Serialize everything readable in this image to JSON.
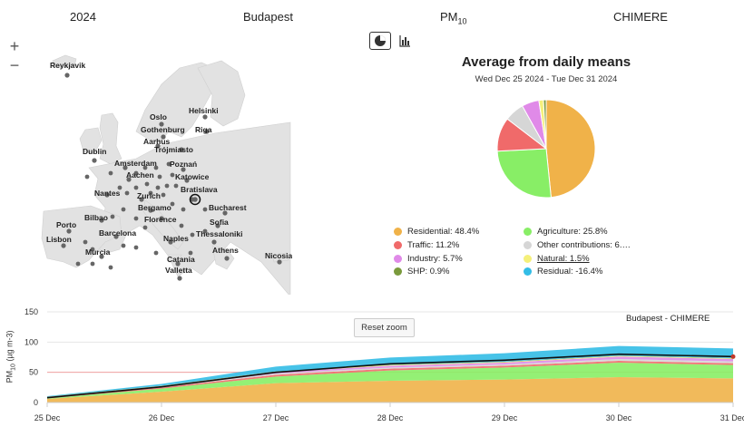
{
  "header": {
    "year": "2024",
    "city": "Budapest",
    "pollutant_main": "PM",
    "pollutant_sub": "10",
    "model": "CHIMERE"
  },
  "map": {
    "zoom_in": "+",
    "zoom_out": "−",
    "cities": [
      {
        "name": "Reykjavik"
      },
      {
        "name": "Helsinki"
      },
      {
        "name": "Oslo"
      },
      {
        "name": "Gothenburg"
      },
      {
        "name": "Riga"
      },
      {
        "name": "Aarhus"
      },
      {
        "name": "Trójmiasto"
      },
      {
        "name": "Dublin"
      },
      {
        "name": "Amsterdam"
      },
      {
        "name": "Poznań"
      },
      {
        "name": "Aachen"
      },
      {
        "name": "Katowice"
      },
      {
        "name": "Nantes"
      },
      {
        "name": "Zurich"
      },
      {
        "name": "Bratislava"
      },
      {
        "name": "Bergamo"
      },
      {
        "name": "Bilbao"
      },
      {
        "name": "Florence"
      },
      {
        "name": "Bucharest"
      },
      {
        "name": "Porto"
      },
      {
        "name": "Sofia"
      },
      {
        "name": "Barcelona"
      },
      {
        "name": "Lisbon"
      },
      {
        "name": "Naples"
      },
      {
        "name": "Thessaloniki"
      },
      {
        "name": "Murcia"
      },
      {
        "name": "Athens"
      },
      {
        "name": "Nicosia"
      },
      {
        "name": "Catania"
      },
      {
        "name": "Valletta"
      }
    ]
  },
  "toggles": {
    "pie": "pie-chart-icon",
    "bar": "bar-chart-icon"
  },
  "pie": {
    "title": "Average from daily means",
    "subtitle": "Wed Dec 25 2024 - Tue Dec 31 2024",
    "legend": [
      {
        "label": "Residential: 48.4%",
        "color": "#f0b249"
      },
      {
        "label": "Agriculture: 25.8%",
        "color": "#88ee66"
      },
      {
        "label": "Traffic: 11.2%",
        "color": "#f06a6a"
      },
      {
        "label": "Other contributions: 6.…",
        "color": "#d6d6d6"
      },
      {
        "label": "Industry: 5.7%",
        "color": "#e08ae8"
      },
      {
        "label": "Natural: 1.5%",
        "color": "#f5f07a"
      },
      {
        "label": "SHP: 0.9%",
        "color": "#7a9a3c"
      },
      {
        "label": "Residual: -16.4%",
        "color": "#33bde6"
      }
    ]
  },
  "timeseries": {
    "reset_zoom": "Reset zoom",
    "series_label": "Budapest - CHIMERE",
    "ylabel_main": "PM",
    "ylabel_sub": "10",
    "ylabel_unit": " (µg m-3)"
  },
  "chart_data": [
    {
      "type": "pie",
      "title": "Average from daily means",
      "subtitle": "Wed Dec 25 2024 - Tue Dec 31 2024",
      "series": [
        {
          "values": [
            {
              "label": "Residential",
              "value": 48.4
            },
            {
              "label": "Agriculture",
              "value": 25.8
            },
            {
              "label": "Traffic",
              "value": 11.2
            },
            {
              "label": "Other contributions",
              "value": 6.5
            },
            {
              "label": "Industry",
              "value": 5.7
            },
            {
              "label": "Natural",
              "value": 1.5
            },
            {
              "label": "SHP",
              "value": 0.9
            }
          ]
        }
      ]
    },
    {
      "type": "area",
      "x": [
        "25 Dec",
        "26 Dec",
        "27 Dec",
        "28 Dec",
        "29 Dec",
        "30 Dec",
        "31 Dec"
      ],
      "ylim": [
        0,
        150
      ],
      "yticks": [
        0,
        50,
        100,
        150
      ],
      "threshold": 50,
      "series": [
        {
          "name": "Residential",
          "color": "#f0b249",
          "values": [
            6,
            18,
            32,
            36,
            38,
            42,
            40
          ]
        },
        {
          "name": "Agriculture",
          "color": "#88ee66",
          "values": [
            1,
            5,
            11,
            17,
            20,
            24,
            22
          ]
        },
        {
          "name": "Traffic",
          "color": "#f06a6a",
          "values": [
            1,
            2,
            3,
            3,
            3,
            3,
            3
          ]
        },
        {
          "name": "Other contributions",
          "color": "#d6d6d6",
          "values": [
            0.5,
            1,
            2,
            2,
            2,
            3,
            3
          ]
        },
        {
          "name": "Industry",
          "color": "#e08ae8",
          "values": [
            0.5,
            1,
            2,
            3,
            3,
            4,
            4
          ]
        },
        {
          "name": "Natural",
          "color": "#f5f07a",
          "values": [
            0.3,
            0.5,
            1,
            1,
            1,
            1,
            1
          ]
        },
        {
          "name": "SHP",
          "color": "#7a9a3c",
          "values": [
            0.2,
            0.3,
            0.5,
            0.5,
            0.5,
            0.5,
            0.5
          ]
        },
        {
          "name": "Residual",
          "color": "#33bde6",
          "values": [
            1,
            3,
            8,
            12,
            14,
            16,
            16
          ]
        }
      ],
      "total": [
        8,
        26,
        50,
        64,
        70,
        80,
        76
      ]
    }
  ]
}
